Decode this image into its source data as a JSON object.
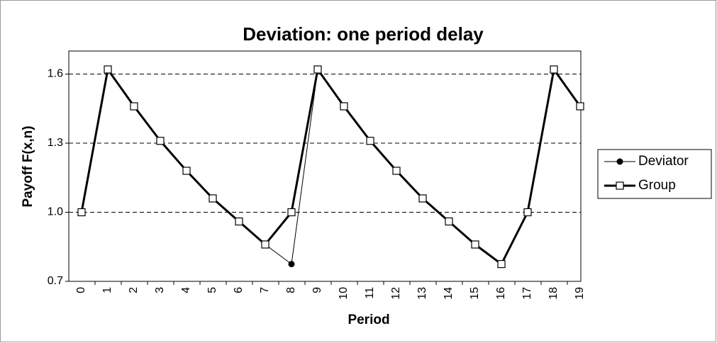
{
  "chart_data": {
    "type": "line",
    "title": "Deviation: one period delay",
    "xlabel": "Period",
    "ylabel": "Payoff F(x,n)",
    "categories": [
      "0",
      "1",
      "2",
      "3",
      "4",
      "5",
      "6",
      "7",
      "8",
      "9",
      "10",
      "11",
      "12",
      "13",
      "14",
      "15",
      "16",
      "17",
      "18",
      "19"
    ],
    "series": [
      {
        "name": "Deviator",
        "color": "#000000",
        "marker": "circle",
        "line_width": 1,
        "values": [
          1.0,
          1.62,
          1.46,
          1.31,
          1.18,
          1.06,
          0.96,
          0.86,
          0.775,
          1.62,
          1.46,
          1.31,
          1.18,
          1.06,
          0.96,
          0.86,
          0.775,
          1.0,
          1.62,
          1.46
        ]
      },
      {
        "name": "Group",
        "color": "#000000",
        "marker": "square",
        "line_width": 3,
        "values": [
          1.0,
          1.62,
          1.46,
          1.31,
          1.18,
          1.06,
          0.96,
          0.86,
          1.0,
          1.62,
          1.46,
          1.31,
          1.18,
          1.06,
          0.96,
          0.86,
          0.775,
          1.0,
          1.62,
          1.46
        ]
      }
    ],
    "ylim": [
      0.7,
      1.7
    ],
    "yticks": [
      0.7,
      {
        "value": 1.0,
        "label": "1.0"
      },
      1.3,
      1.6
    ],
    "grid": true,
    "legend": "right"
  }
}
